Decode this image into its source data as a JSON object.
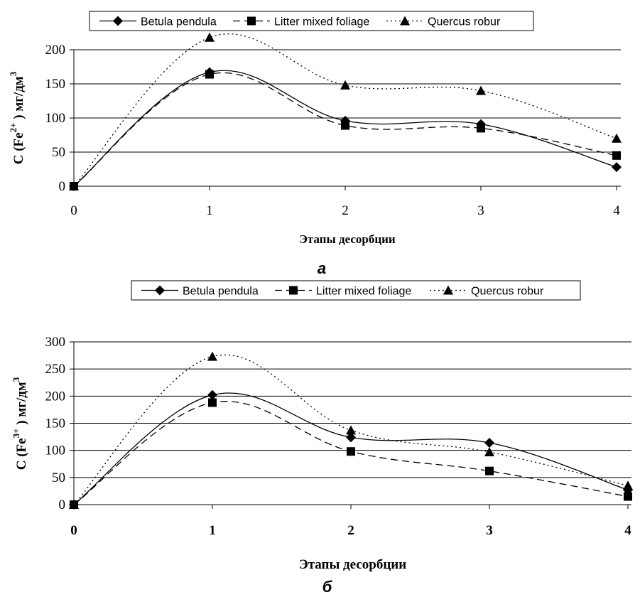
{
  "chart_data": [
    {
      "type": "line",
      "panel_label": "а",
      "x": [
        0,
        1,
        2,
        3,
        4
      ],
      "xlabel": "Этапы десорбции",
      "ylabel": {
        "prefix": "C (Fe",
        "ion": "2+",
        "suffix": ") мг/дм",
        "power": "3"
      },
      "ylim": [
        0,
        200
      ],
      "yticks": [
        0,
        50,
        100,
        150,
        200
      ],
      "grid": true,
      "series": [
        {
          "name": "Betula pendula",
          "values": [
            0,
            167,
            96,
            91,
            28
          ]
        },
        {
          "name": "Litter mixed foliage",
          "values": [
            0,
            164,
            89,
            85,
            45
          ]
        },
        {
          "name": "Quercus robur",
          "values": [
            0,
            218,
            148,
            140,
            70
          ]
        }
      ]
    },
    {
      "type": "line",
      "panel_label": "б",
      "x": [
        0,
        1,
        2,
        3,
        4
      ],
      "xlabel": "Этапы десорбции",
      "ylabel": {
        "prefix": "C (Fe",
        "ion": "3+",
        "suffix": ") мг/дм",
        "power": "3"
      },
      "ylim": [
        0,
        300
      ],
      "yticks": [
        0,
        50,
        100,
        150,
        200,
        250,
        300
      ],
      "grid": true,
      "series": [
        {
          "name": "Betula pendula",
          "values": [
            0,
            202,
            124,
            114,
            27
          ]
        },
        {
          "name": "Litter mixed foliage",
          "values": [
            0,
            188,
            98,
            62,
            15
          ]
        },
        {
          "name": "Quercus robur",
          "values": [
            0,
            273,
            137,
            97,
            35
          ]
        }
      ]
    }
  ]
}
